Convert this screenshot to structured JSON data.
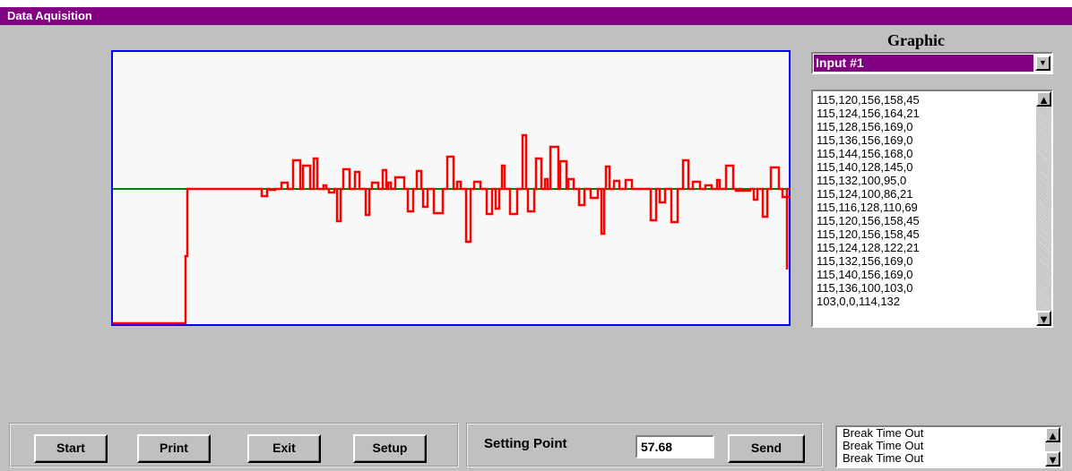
{
  "window": {
    "title": "Data Aquisition"
  },
  "graphic": {
    "label": "Graphic",
    "selected": "Input #1",
    "readings": [
      "115,120,156,158,45",
      "115,124,156,164,21",
      "115,128,156,169,0",
      "115,136,156,169,0",
      "115,144,156,168,0",
      "115,140,128,145,0",
      "115,132,100,95,0",
      "115,124,100,86,21",
      "115,116,128,110,69",
      "115,120,156,158,45",
      "115,120,156,158,45",
      "115,124,128,122,21",
      "115,132,156,169,0",
      "115,140,156,169,0",
      "115,136,100,103,0",
      "103,0,0,114,132"
    ]
  },
  "buttons": [
    "Start",
    "Print",
    "Exit",
    "Setup"
  ],
  "setting": {
    "label": "Setting Point",
    "value": "57.68",
    "button": "Send"
  },
  "log": [
    "Break Time Out",
    "Break Time Out",
    "Break Time Out"
  ]
}
